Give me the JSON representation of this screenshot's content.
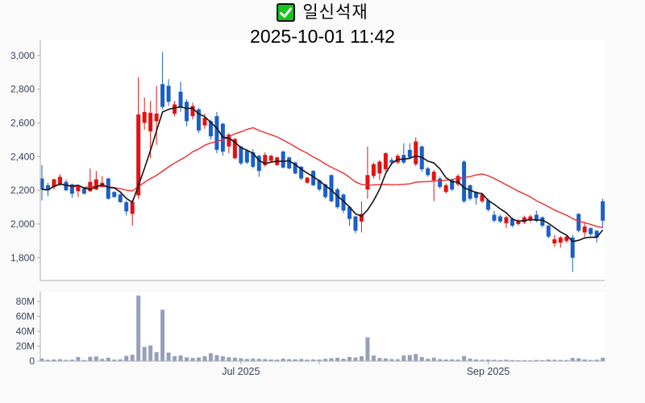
{
  "header": {
    "stock_name": "일신석재",
    "datetime": "2025-10-01 11:42",
    "checkbox_checked": true
  },
  "colors": {
    "page_bg": "#fafafa",
    "plot_bg": "#ffffff",
    "axis_line": "#a9adb3",
    "axis_text": "#36435a",
    "up": "#e21212",
    "down": "#1b5fc6",
    "ma_short": "#141414",
    "ma_long": "#ef2b2d",
    "volume_bar": "#96a0ba",
    "checkbox_green": "#16c41d"
  },
  "chart_data": {
    "type": "candlestick+volume",
    "title": "일신석재",
    "subtitle": "2025-10-01 11:42",
    "legend_position": "none",
    "grid": false,
    "price_axis": {
      "min": 1665,
      "max": 3090,
      "tick_values": [
        1800,
        2000,
        2200,
        2400,
        2600,
        2800,
        3000
      ],
      "tick_labels": [
        "1,800",
        "2,000",
        "2,200",
        "2,400",
        "2,600",
        "2,800",
        "3,000"
      ]
    },
    "volume_axis": {
      "min": 0,
      "max": 93,
      "unit": "millions of shares",
      "tick_values": [
        0,
        20,
        40,
        60,
        80
      ],
      "tick_labels": [
        "0",
        "20M",
        "40M",
        "60M",
        "80M"
      ]
    },
    "x_axis": {
      "ticks": [
        {
          "index": 33,
          "label": "Jul 2025"
        },
        {
          "index": 46,
          "label": ""
        },
        {
          "index": 74,
          "label": "Sep 2025"
        }
      ]
    },
    "moving_averages": [
      {
        "period": 5,
        "color_key": "ma_short"
      },
      {
        "period": 20,
        "color_key": "ma_long"
      }
    ],
    "columns": [
      "open",
      "high",
      "low",
      "close",
      "volume_millions"
    ],
    "candles": [
      [
        2270,
        2350,
        2140,
        2205,
        3.5
      ],
      [
        2230,
        2245,
        2165,
        2200,
        1.8
      ],
      [
        2220,
        2270,
        2205,
        2265,
        2.2
      ],
      [
        2235,
        2295,
        2225,
        2280,
        2.5
      ],
      [
        2250,
        2265,
        2195,
        2200,
        1.6
      ],
      [
        2235,
        2240,
        2155,
        2180,
        1.9
      ],
      [
        2195,
        2230,
        2160,
        2225,
        5.5
      ],
      [
        2210,
        2215,
        2175,
        2180,
        1.5
      ],
      [
        2195,
        2330,
        2190,
        2250,
        5.8
      ],
      [
        2205,
        2315,
        2200,
        2265,
        6.2
      ],
      [
        2220,
        2285,
        2215,
        2245,
        3.0
      ],
      [
        2270,
        2275,
        2145,
        2150,
        4.5
      ],
      [
        2190,
        2195,
        2155,
        2160,
        2.0
      ],
      [
        2175,
        2180,
        2125,
        2130,
        2.4
      ],
      [
        2130,
        2140,
        2050,
        2075,
        7.0
      ],
      [
        2060,
        2145,
        1990,
        2130,
        8.5
      ],
      [
        2170,
        2870,
        2150,
        2650,
        88
      ],
      [
        2600,
        2750,
        2560,
        2665,
        19
      ],
      [
        2550,
        2730,
        2390,
        2660,
        21
      ],
      [
        2610,
        2820,
        2470,
        2655,
        12
      ],
      [
        2830,
        3020,
        2680,
        2695,
        69
      ],
      [
        2820,
        2860,
        2700,
        2725,
        11.5
      ],
      [
        2655,
        2730,
        2640,
        2710,
        6.5
      ],
      [
        2785,
        2845,
        2665,
        2690,
        7.5
      ],
      [
        2725,
        2740,
        2580,
        2610,
        5.0
      ],
      [
        2640,
        2720,
        2620,
        2700,
        4.2
      ],
      [
        2680,
        2690,
        2540,
        2555,
        4.8
      ],
      [
        2585,
        2655,
        2565,
        2630,
        6.5
      ],
      [
        2610,
        2620,
        2500,
        2520,
        10.5
      ],
      [
        2640,
        2665,
        2420,
        2440,
        8.0
      ],
      [
        2595,
        2600,
        2405,
        2430,
        6.4
      ],
      [
        2460,
        2540,
        2420,
        2530,
        5.2
      ],
      [
        2390,
        2510,
        2385,
        2505,
        4.6
      ],
      [
        2460,
        2465,
        2350,
        2360,
        3.8
      ],
      [
        2435,
        2440,
        2355,
        2365,
        2.9
      ],
      [
        2425,
        2445,
        2330,
        2340,
        3.4
      ],
      [
        2405,
        2410,
        2280,
        2315,
        3.1
      ],
      [
        2350,
        2425,
        2340,
        2410,
        2.7
      ],
      [
        2375,
        2410,
        2365,
        2405,
        2.2
      ],
      [
        2350,
        2400,
        2345,
        2395,
        2.0
      ],
      [
        2430,
        2435,
        2330,
        2335,
        3.3
      ],
      [
        2395,
        2400,
        2325,
        2330,
        2.6
      ],
      [
        2365,
        2370,
        2295,
        2300,
        2.4
      ],
      [
        2340,
        2345,
        2260,
        2270,
        2.8
      ],
      [
        2245,
        2280,
        2240,
        2275,
        1.9
      ],
      [
        2315,
        2320,
        2225,
        2230,
        2.3
      ],
      [
        2260,
        2265,
        2195,
        2205,
        2.1
      ],
      [
        2235,
        2240,
        2150,
        2160,
        3.0
      ],
      [
        2290,
        2295,
        2130,
        2135,
        3.9
      ],
      [
        2205,
        2215,
        2090,
        2100,
        4.4
      ],
      [
        2175,
        2180,
        2065,
        2080,
        3.2
      ],
      [
        2100,
        2110,
        1990,
        2030,
        5.6
      ],
      [
        2045,
        2050,
        1945,
        1960,
        4.8
      ],
      [
        2015,
        2135,
        1950,
        2060,
        6.5
      ],
      [
        2205,
        2460,
        2150,
        2290,
        32
      ],
      [
        2285,
        2365,
        2270,
        2355,
        7.5
      ],
      [
        2300,
        2380,
        2260,
        2370,
        4.2
      ],
      [
        2325,
        2425,
        2310,
        2420,
        3.6
      ],
      [
        2380,
        2395,
        2350,
        2365,
        2.8
      ],
      [
        2365,
        2415,
        2355,
        2405,
        2.5
      ],
      [
        2410,
        2480,
        2355,
        2365,
        7.6
      ],
      [
        2440,
        2480,
        2385,
        2395,
        8.2
      ],
      [
        2355,
        2515,
        2345,
        2490,
        9.4
      ],
      [
        2460,
        2465,
        2310,
        2325,
        5.4
      ],
      [
        2330,
        2340,
        2280,
        2290,
        3.1
      ],
      [
        2260,
        2320,
        2135,
        2310,
        4.6
      ],
      [
        2270,
        2280,
        2210,
        2220,
        2.6
      ],
      [
        2190,
        2240,
        2180,
        2230,
        2.2
      ],
      [
        2260,
        2270,
        2195,
        2205,
        2.4
      ],
      [
        2235,
        2295,
        2225,
        2285,
        2.0
      ],
      [
        2370,
        2380,
        2125,
        2135,
        6.8
      ],
      [
        2230,
        2235,
        2140,
        2150,
        3.4
      ],
      [
        2190,
        2195,
        2115,
        2155,
        2.2
      ],
      [
        2135,
        2185,
        2125,
        2175,
        1.8
      ],
      [
        2140,
        2150,
        2075,
        2085,
        2.0
      ],
      [
        2055,
        2080,
        2010,
        2020,
        1.7
      ],
      [
        2045,
        2055,
        2005,
        2015,
        1.5
      ],
      [
        2005,
        2050,
        1975,
        2040,
        1.9
      ],
      [
        2030,
        2040,
        1980,
        1990,
        1.4
      ],
      [
        2000,
        2030,
        1990,
        2020,
        1.2
      ],
      [
        2010,
        2050,
        2000,
        2040,
        1.3
      ],
      [
        2020,
        2055,
        2010,
        2045,
        1.1
      ],
      [
        2055,
        2080,
        2010,
        2020,
        1.5
      ],
      [
        2040,
        2045,
        1980,
        1990,
        1.3
      ],
      [
        1990,
        1995,
        1915,
        1925,
        2.1
      ],
      [
        1885,
        1935,
        1865,
        1910,
        1.8
      ],
      [
        1890,
        1930,
        1860,
        1920,
        1.6
      ],
      [
        1900,
        1935,
        1890,
        1925,
        1.4
      ],
      [
        1920,
        1935,
        1715,
        1800,
        4.2
      ],
      [
        2060,
        2065,
        1950,
        1960,
        3.8
      ],
      [
        1950,
        2005,
        1925,
        1985,
        2.2
      ],
      [
        1975,
        1980,
        1930,
        1940,
        1.6
      ],
      [
        1960,
        1965,
        1890,
        1920,
        1.9
      ],
      [
        2135,
        2150,
        1975,
        2020,
        4.5
      ]
    ]
  }
}
